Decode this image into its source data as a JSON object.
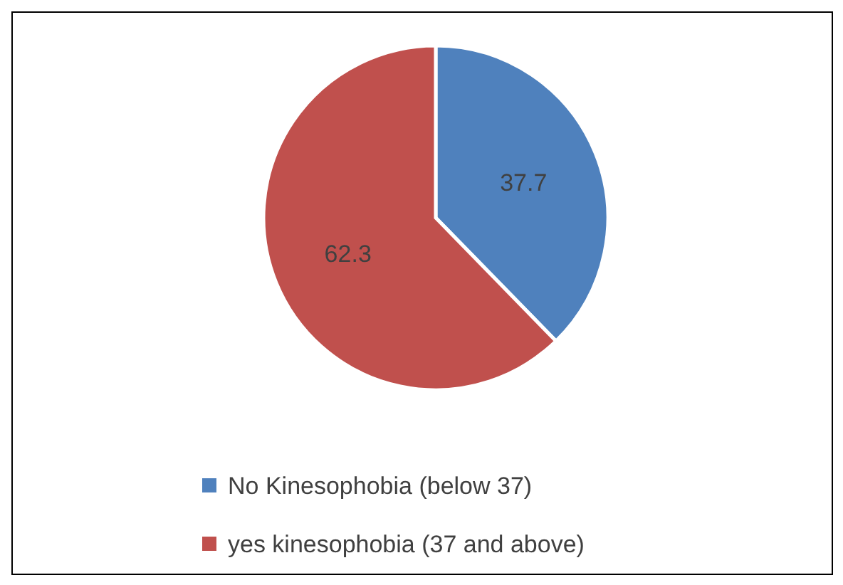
{
  "chart_data": {
    "type": "pie",
    "categories": [
      "No Kinesophobia (below 37)",
      "yes kinesophobia (37 and above)"
    ],
    "values": [
      37.7,
      62.3
    ],
    "colors": [
      "#4f81bd",
      "#c0504d"
    ],
    "data_labels": true,
    "legend": "bottom"
  }
}
